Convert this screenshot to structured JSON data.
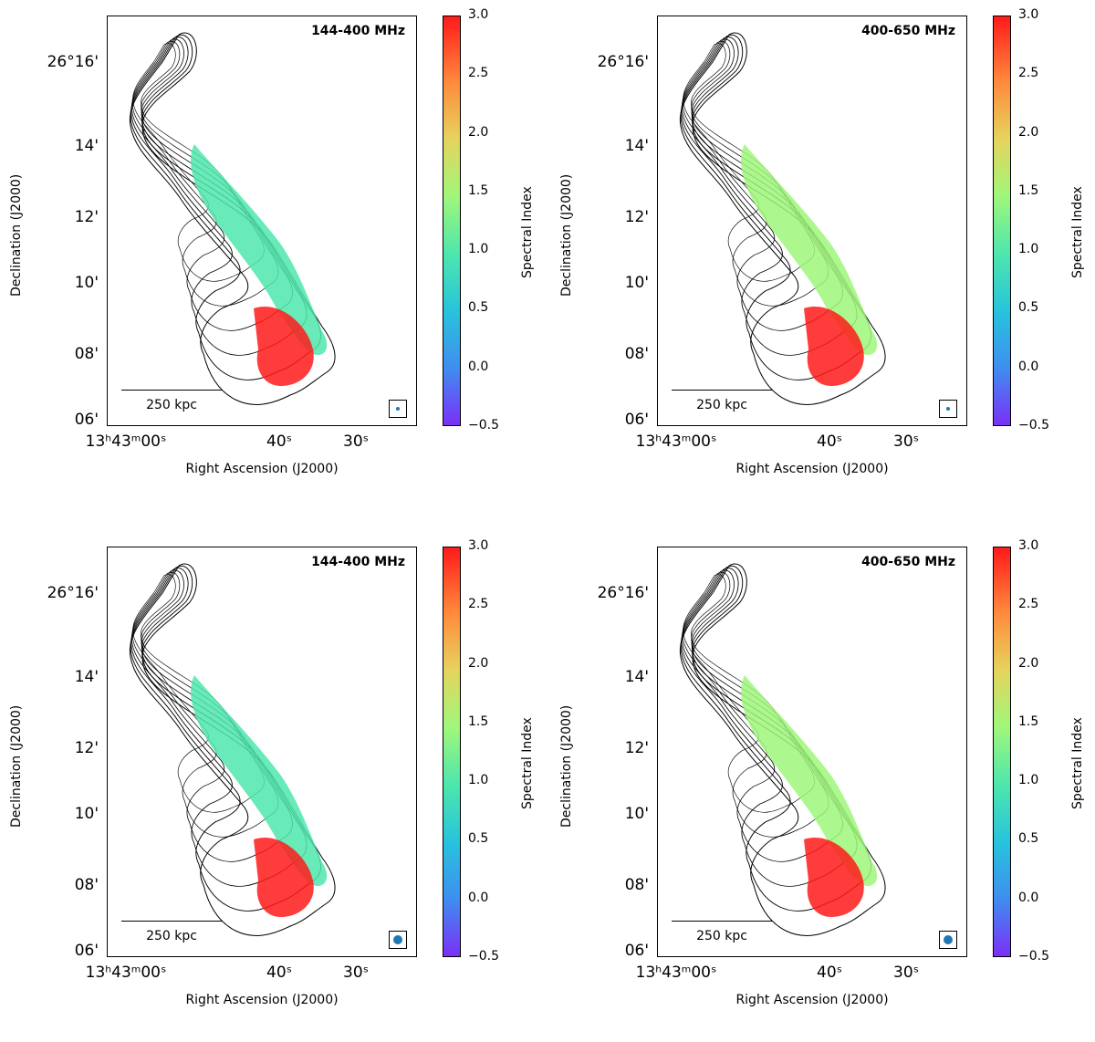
{
  "colorbar": {
    "label": "Spectral Index",
    "ticks": [
      "3.0",
      "2.5",
      "2.0",
      "1.5",
      "1.0",
      "0.5",
      "0.0",
      "−0.5"
    ],
    "range": [
      -0.5,
      3.0
    ],
    "colors": [
      "#7b2ff7",
      "#3f8ef0",
      "#27c4dc",
      "#4ee6ad",
      "#9ff77a",
      "#e6d35d",
      "#ff8a3c",
      "#ff1a1a"
    ]
  },
  "axes": {
    "xlabel": "Right Ascension (J2000)",
    "ylabel": "Declination (J2000)",
    "yticks": [
      "26°16'",
      "14'",
      "12'",
      "10'",
      "08'",
      "06'"
    ],
    "xticks": [
      "13ʰ43ᵐ00ˢ",
      "40ˢ",
      "30ˢ"
    ]
  },
  "scalebar": "250 kpc",
  "panels": [
    {
      "band": "144-400 MHz"
    },
    {
      "band": "400-650 MHz"
    },
    {
      "band": "144-400 MHz"
    },
    {
      "band": "400-650 MHz"
    }
  ]
}
